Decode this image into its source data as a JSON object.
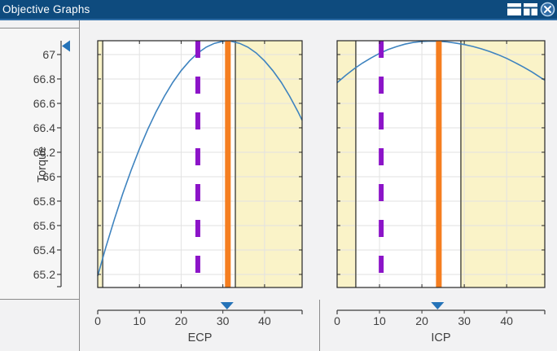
{
  "window": {
    "title": "Objective Graphs",
    "icons": [
      "split-rows-icon",
      "split-columns-icon",
      "close-icon"
    ]
  },
  "colors": {
    "titlebar": "#0E4B7E",
    "titlebar_text": "#FFFFFF",
    "accent_line": "#2D6CA6",
    "background": "#F2F2F3",
    "panel_border": "#8C8C8C",
    "plot_bg": "#FFFFFF",
    "plot_border": "#262626",
    "grid": "#E2E2E2",
    "constraint_region": "#FAF3C8",
    "boundary_line": "#6B6B60",
    "curve": "#3E83BF",
    "target_line": "#8C14C8",
    "current_line": "#F57E20",
    "marker": "#2573B8",
    "tick_text": "#404040",
    "axis_line": "#3C3C3C"
  },
  "y_axis": {
    "label": "Torque",
    "tick_values": [
      67,
      66.8,
      66.6,
      66.4,
      66.2,
      66,
      65.8,
      65.6,
      65.4,
      65.2
    ],
    "tick_labels": [
      "67",
      "66.8",
      "66.6",
      "66.4",
      "66.2",
      "66",
      "65.8",
      "65.6",
      "65.4",
      "65.2"
    ],
    "range": [
      65.093,
      67.113
    ],
    "marker_value": 67.07
  },
  "chart_data": [
    {
      "type": "line",
      "xlabel": "ECP",
      "ylabel": "Torque",
      "x_range": [
        0,
        49
      ],
      "x_tick_values": [
        0,
        10,
        20,
        30,
        40
      ],
      "x_tick_labels": [
        "0",
        "10",
        "20",
        "30",
        "40"
      ],
      "constraint_regions": [
        [
          0,
          1.2
        ],
        [
          33,
          49
        ]
      ],
      "boundary_lines": [
        1.2,
        33
      ],
      "target_x": 24,
      "current_x": 31.2,
      "slider_marker_x": 31,
      "curve": [
        [
          0,
          65.188
        ],
        [
          2,
          65.428
        ],
        [
          4,
          65.652
        ],
        [
          6,
          65.86
        ],
        [
          8,
          66.052
        ],
        [
          10,
          66.228
        ],
        [
          12,
          66.388
        ],
        [
          14,
          66.532
        ],
        [
          16,
          66.66
        ],
        [
          18,
          66.772
        ],
        [
          20,
          66.868
        ],
        [
          22,
          66.948
        ],
        [
          24,
          67.012
        ],
        [
          26,
          67.06
        ],
        [
          28,
          67.092
        ],
        [
          30,
          67.108
        ],
        [
          31,
          67.11
        ],
        [
          32,
          67.108
        ],
        [
          34,
          67.092
        ],
        [
          36,
          67.06
        ],
        [
          38,
          67.012
        ],
        [
          40,
          66.948
        ],
        [
          42,
          66.868
        ],
        [
          44,
          66.772
        ],
        [
          46,
          66.66
        ],
        [
          48,
          66.532
        ],
        [
          49,
          66.462
        ]
      ]
    },
    {
      "type": "line",
      "xlabel": "ICP",
      "ylabel": "Torque",
      "x_range": [
        0,
        49
      ],
      "x_tick_values": [
        0,
        10,
        20,
        30,
        40
      ],
      "x_tick_labels": [
        "0",
        "10",
        "20",
        "30",
        "40"
      ],
      "constraint_regions": [
        [
          0,
          4.4
        ],
        [
          29.2,
          49
        ]
      ],
      "boundary_lines": [
        4.4,
        29.2
      ],
      "target_x": 10.4,
      "current_x": 24,
      "slider_marker_x": 23.7,
      "curve": [
        [
          0,
          66.77
        ],
        [
          2,
          66.829
        ],
        [
          4,
          66.883
        ],
        [
          6,
          66.93
        ],
        [
          8,
          66.972
        ],
        [
          10,
          67.009
        ],
        [
          12,
          67.04
        ],
        [
          14,
          67.065
        ],
        [
          16,
          67.085
        ],
        [
          18,
          67.099
        ],
        [
          20,
          67.107
        ],
        [
          22,
          67.11
        ],
        [
          24,
          67.108
        ],
        [
          26,
          67.103
        ],
        [
          28,
          67.094
        ],
        [
          30,
          67.082
        ],
        [
          32,
          67.066
        ],
        [
          34,
          67.047
        ],
        [
          36,
          67.024
        ],
        [
          38,
          66.998
        ],
        [
          40,
          66.968
        ],
        [
          42,
          66.934
        ],
        [
          44,
          66.897
        ],
        [
          46,
          66.857
        ],
        [
          48,
          66.812
        ],
        [
          49,
          66.79
        ]
      ]
    }
  ]
}
